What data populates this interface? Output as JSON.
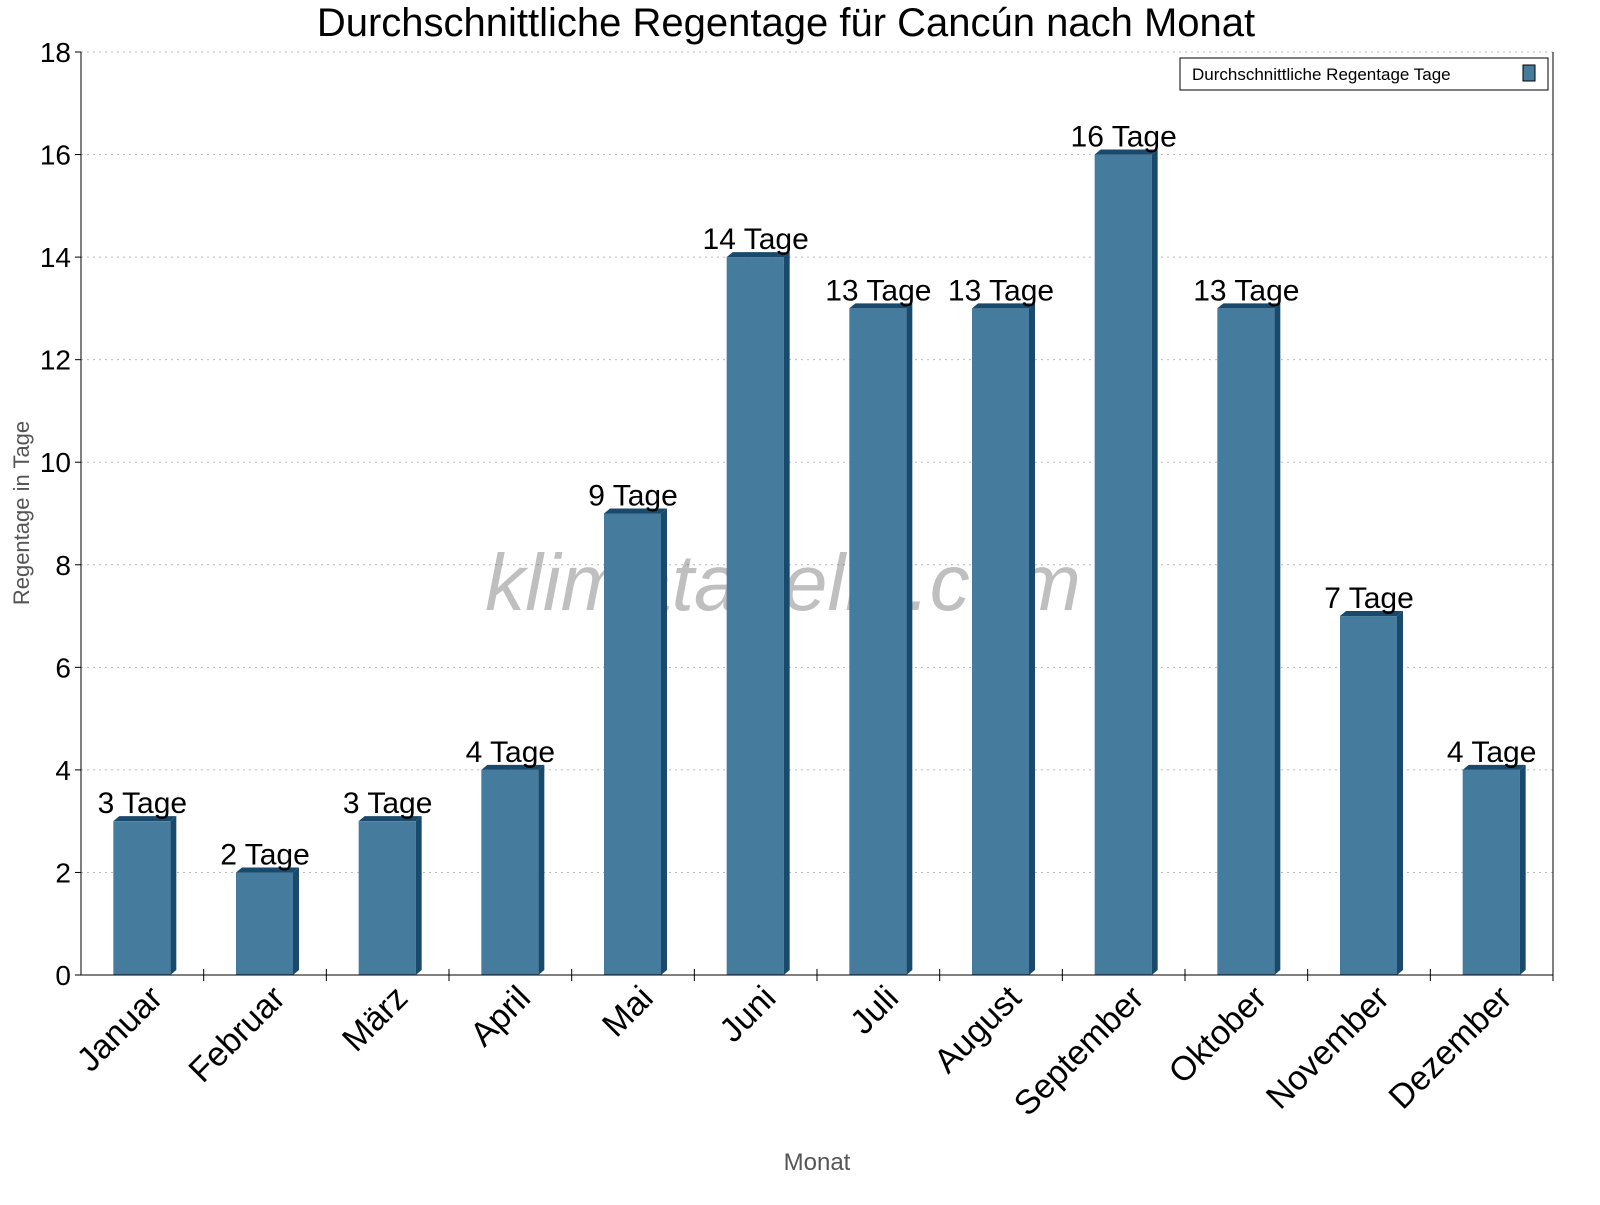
{
  "chart_data": {
    "type": "bar",
    "title": "Durchschnittliche Regentage für Cancún nach Monat",
    "xlabel": "Monat",
    "ylabel": "Regentage in Tage",
    "ylim": [
      0,
      18
    ],
    "yticks": [
      0,
      2,
      4,
      6,
      8,
      10,
      12,
      14,
      16,
      18
    ],
    "grid": true,
    "legend_position": "top-right",
    "categories": [
      "Januar",
      "Februar",
      "März",
      "April",
      "Mai",
      "Juni",
      "Juli",
      "August",
      "September",
      "Oktober",
      "November",
      "Dezember"
    ],
    "series": [
      {
        "name": "Durchschnittliche Regentage Tage",
        "values": [
          3,
          2,
          3,
          4,
          9,
          14,
          13,
          13,
          16,
          13,
          7,
          4
        ],
        "data_labels": [
          "3 Tage",
          "2 Tage",
          "3 Tage",
          "4 Tage",
          "9 Tage",
          "14 Tage",
          "13 Tage",
          "13 Tage",
          "16 Tage",
          "13 Tage",
          "7 Tage",
          "4 Tage"
        ],
        "color": "#457b9d",
        "side_color": "#1a4a6b"
      }
    ],
    "watermark": "klimatabelle.com"
  }
}
